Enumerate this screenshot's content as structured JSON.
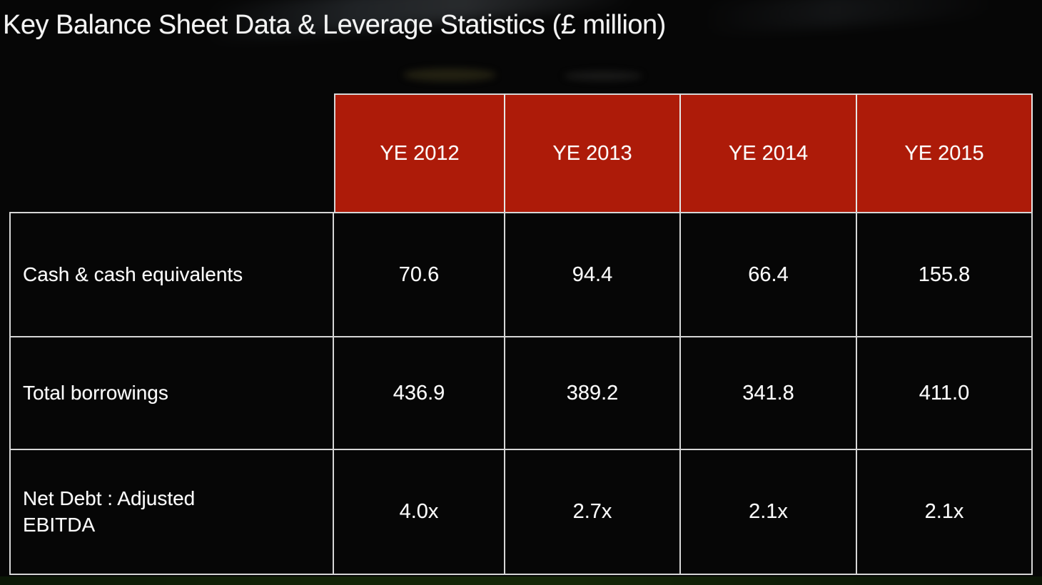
{
  "title": "Key Balance Sheet Data & Leverage Statistics (£ million)",
  "table": {
    "col_headers": [
      "YE 2012",
      "YE 2013",
      "YE 2014",
      "YE 2015"
    ],
    "rows": [
      {
        "label": "Cash & cash equivalents",
        "values": [
          "70.6",
          "94.4",
          "66.4",
          "155.8"
        ]
      },
      {
        "label": "Total borrowings",
        "values": [
          "436.9",
          "389.2",
          "341.8",
          "411.0"
        ]
      },
      {
        "label": "Net Debt : Adjusted EBITDA",
        "values": [
          "4.0x",
          "2.7x",
          "2.1x",
          "2.1x"
        ]
      }
    ]
  },
  "colors": {
    "header_red": "#ad1b09",
    "border_white": "#d6d6d6",
    "background_black": "#060606",
    "bottom_strip_green": "#122306",
    "text_white": "#fdfdfd"
  },
  "chart_data": {
    "type": "table",
    "title": "Key Balance Sheet Data & Leverage Statistics (£ million)",
    "columns": [
      "",
      "YE 2012",
      "YE 2013",
      "YE 2014",
      "YE 2015"
    ],
    "rows": [
      [
        "Cash & cash equivalents",
        "70.6",
        "94.4",
        "66.4",
        "155.8"
      ],
      [
        "Total borrowings",
        "436.9",
        "389.2",
        "341.8",
        "411.0"
      ],
      [
        "Net Debt : Adjusted EBITDA",
        "4.0x",
        "2.7x",
        "2.1x",
        "2.1x"
      ]
    ]
  }
}
